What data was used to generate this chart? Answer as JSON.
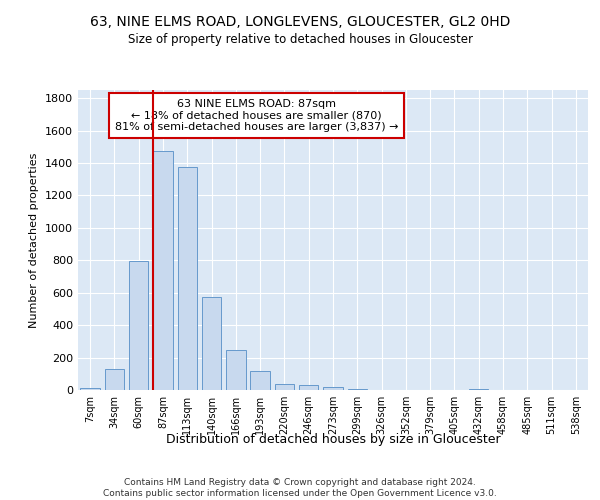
{
  "title": "63, NINE ELMS ROAD, LONGLEVENS, GLOUCESTER, GL2 0HD",
  "subtitle": "Size of property relative to detached houses in Gloucester",
  "xlabel": "Distribution of detached houses by size in Gloucester",
  "ylabel": "Number of detached properties",
  "categories": [
    "7sqm",
    "34sqm",
    "60sqm",
    "87sqm",
    "113sqm",
    "140sqm",
    "166sqm",
    "193sqm",
    "220sqm",
    "246sqm",
    "273sqm",
    "299sqm",
    "326sqm",
    "352sqm",
    "379sqm",
    "405sqm",
    "432sqm",
    "458sqm",
    "485sqm",
    "511sqm",
    "538sqm"
  ],
  "bar_values": [
    10,
    130,
    795,
    1475,
    1375,
    575,
    248,
    118,
    38,
    28,
    18,
    8,
    3,
    0,
    0,
    0,
    5,
    0,
    0,
    0,
    0
  ],
  "bar_color": "#c8d9ee",
  "bar_edge_color": "#6699cc",
  "vline_x": 3,
  "vline_color": "#cc0000",
  "annotation_text": "63 NINE ELMS ROAD: 87sqm\n← 18% of detached houses are smaller (870)\n81% of semi-detached houses are larger (3,837) →",
  "annotation_box_color": "#ffffff",
  "annotation_box_edge": "#cc0000",
  "ylim": [
    0,
    1850
  ],
  "yticks": [
    0,
    200,
    400,
    600,
    800,
    1000,
    1200,
    1400,
    1600,
    1800
  ],
  "background_color": "#dce8f5",
  "footer_line1": "Contains HM Land Registry data © Crown copyright and database right 2024.",
  "footer_line2": "Contains public sector information licensed under the Open Government Licence v3.0."
}
